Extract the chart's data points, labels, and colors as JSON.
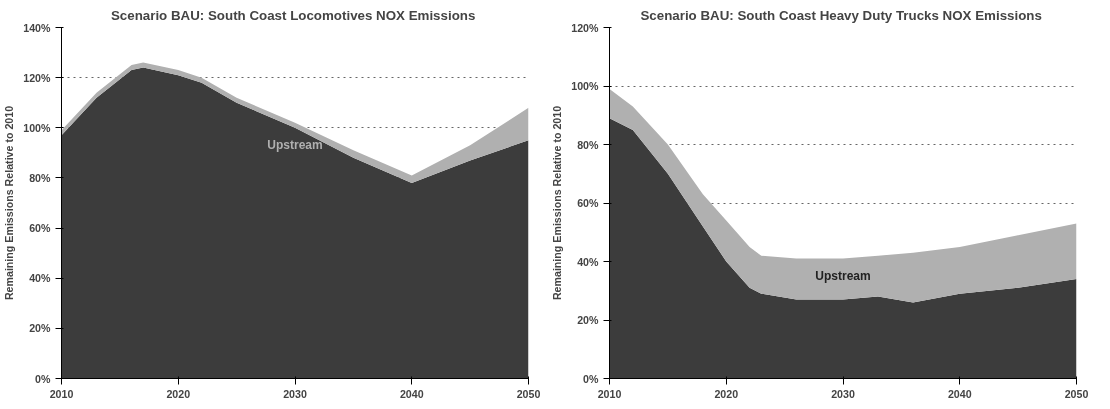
{
  "chart_data": [
    {
      "type": "area",
      "title": "Scenario BAU:  South Coast Locomotives NOX Emissions",
      "ylabel": "Remaining Emissions Relative to 2010",
      "stacked": true,
      "grid": "y",
      "legend": false,
      "x": [
        2010,
        2013,
        2016,
        2017,
        2020,
        2022,
        2025,
        2030,
        2035,
        2040,
        2045,
        2050
      ],
      "series": [
        {
          "color": "#3c3c3c",
          "values": [
            97,
            112,
            123,
            124,
            121,
            118,
            110,
            100,
            88,
            78,
            87,
            95
          ]
        },
        {
          "name": "Upstream",
          "color": "#b0b0b0",
          "values": [
            2,
            2,
            2,
            2,
            2,
            2,
            2,
            2,
            3,
            3,
            6,
            13
          ]
        }
      ],
      "xlim": [
        2010,
        2050
      ],
      "xticks": [
        2010,
        2020,
        2030,
        2040,
        2050
      ],
      "ylim": [
        0,
        140
      ],
      "yticks": [
        {
          "value": 0,
          "label": "0%"
        },
        {
          "value": 20,
          "label": "20%"
        },
        {
          "value": 40,
          "label": "40%"
        },
        {
          "value": 60,
          "label": "60%"
        },
        {
          "value": 80,
          "label": "80%"
        },
        {
          "value": 100,
          "label": "100%"
        },
        {
          "value": 120,
          "label": "120%"
        },
        {
          "value": 140,
          "label": "140%"
        }
      ]
    },
    {
      "type": "area",
      "title": "Scenario BAU:  South Coast Heavy Duty Trucks NOX Emissions",
      "ylabel": "Remaining Emissions Relative to 2010",
      "stacked": true,
      "grid": "y",
      "legend": false,
      "x": [
        2010,
        2012,
        2015,
        2018,
        2020,
        2022,
        2023,
        2026,
        2030,
        2033,
        2036,
        2040,
        2045,
        2050
      ],
      "series": [
        {
          "color": "#3c3c3c",
          "values": [
            89,
            85,
            70,
            52,
            40,
            31,
            29,
            27,
            27,
            28,
            26,
            29,
            31,
            34
          ]
        },
        {
          "name": "Upstream",
          "color": "#b0b0b0",
          "values": [
            10,
            8,
            10,
            11,
            14,
            14,
            13,
            14,
            14,
            14,
            17,
            16,
            18,
            19
          ]
        }
      ],
      "xlim": [
        2010,
        2050
      ],
      "xticks": [
        2010,
        2020,
        2030,
        2040,
        2050
      ],
      "ylim": [
        0,
        120
      ],
      "yticks": [
        {
          "value": 0,
          "label": "0%"
        },
        {
          "value": 20,
          "label": "20%"
        },
        {
          "value": 40,
          "label": "40%"
        },
        {
          "value": 60,
          "label": "60%"
        },
        {
          "value": 80,
          "label": "80%"
        },
        {
          "value": 100,
          "label": "100%"
        },
        {
          "value": 120,
          "label": "120%"
        }
      ]
    }
  ]
}
